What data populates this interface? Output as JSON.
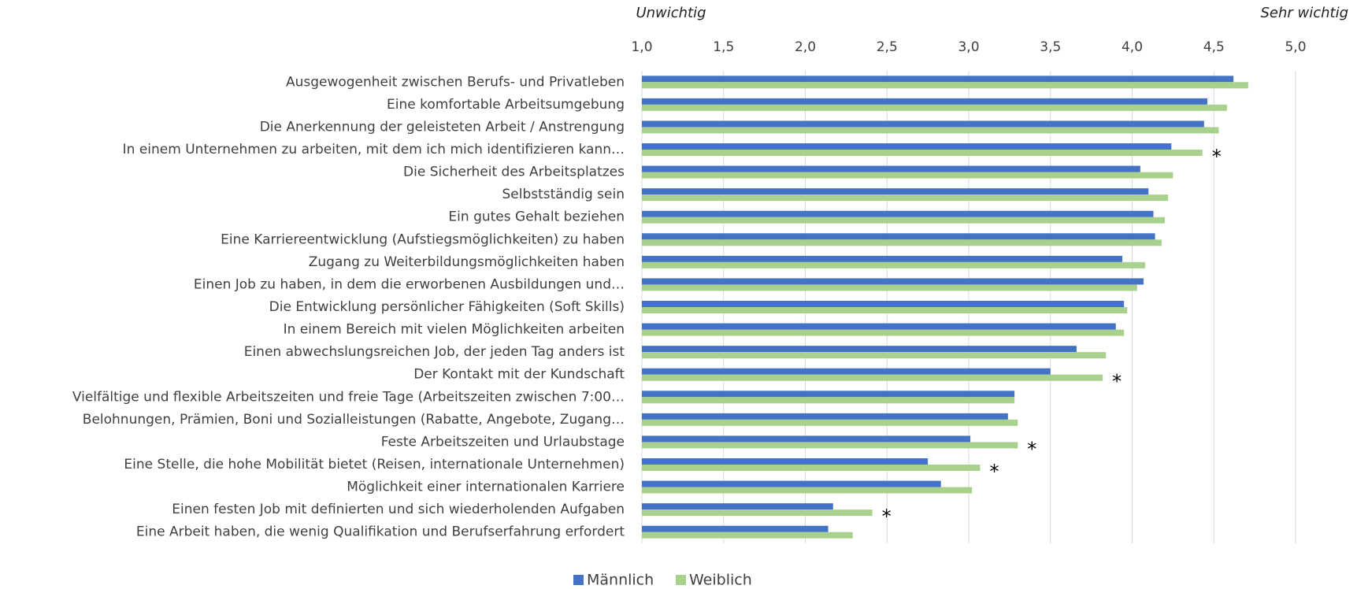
{
  "chart_data": {
    "type": "bar",
    "orientation": "horizontal",
    "xlabel_left": "Unwichtig",
    "xlabel_right": "Sehr wichtig",
    "categories": [
      "Ausgewogenheit zwischen Berufs- und Privatleben",
      "Eine komfortable Arbeitsumgebung",
      "Die Anerkennung der geleisteten Arbeit / Anstrengung",
      "In einem Unternehmen zu arbeiten, mit dem ich mich identifizieren kann…",
      "Die Sicherheit des Arbeitsplatzes",
      "Selbstständig sein",
      "Ein gutes Gehalt beziehen",
      "Eine Karriereentwicklung (Aufstiegsmöglichkeiten) zu haben",
      "Zugang zu Weiterbildungsmöglichkeiten haben",
      "Einen Job zu haben, in dem die erworbenen Ausbildungen und…",
      "Die Entwicklung persönlicher Fähigkeiten (Soft Skills)",
      "In einem Bereich mit vielen Möglichkeiten arbeiten",
      "Einen abwechslungsreichen Job, der jeden Tag anders ist",
      "Der Kontakt mit der Kundschaft",
      "Vielfältige und flexible Arbeitszeiten und freie Tage (Arbeitszeiten zwischen 7:00…",
      "Belohnungen, Prämien, Boni und Sozialleistungen (Rabatte, Angebote, Zugang…",
      "Feste Arbeitszeiten und Urlaubstage",
      "Eine Stelle, die hohe Mobilität bietet (Reisen, internationale Unternehmen)",
      "Möglichkeit einer internationalen Karriere",
      "Einen festen Job mit definierten und sich wiederholenden Aufgaben",
      "Eine Arbeit haben, die wenig Qualifikation und Berufserfahrung erfordert"
    ],
    "series": [
      {
        "name": "Männlich",
        "color": "#4472c4",
        "values": [
          4.62,
          4.46,
          4.44,
          4.24,
          4.05,
          4.1,
          4.13,
          4.14,
          3.94,
          4.07,
          3.95,
          3.9,
          3.66,
          3.5,
          3.28,
          3.24,
          3.01,
          2.75,
          2.83,
          2.17,
          2.14
        ]
      },
      {
        "name": "Weiblich",
        "color": "#a9d18e",
        "values": [
          4.71,
          4.58,
          4.53,
          4.43,
          4.25,
          4.22,
          4.2,
          4.18,
          4.08,
          4.03,
          3.97,
          3.95,
          3.84,
          3.82,
          3.28,
          3.3,
          3.3,
          3.07,
          3.02,
          2.41,
          2.29
        ]
      }
    ],
    "annotations": [
      null,
      null,
      null,
      "*",
      null,
      null,
      null,
      null,
      null,
      null,
      null,
      null,
      null,
      "*",
      null,
      null,
      "*",
      "*",
      null,
      "*",
      null
    ],
    "xlim": [
      1.0,
      5.0
    ],
    "xticks": [
      {
        "value": 1.0,
        "label": "1,0"
      },
      {
        "value": 1.5,
        "label": "1,5"
      },
      {
        "value": 2.0,
        "label": "2,0"
      },
      {
        "value": 2.5,
        "label": "2,5"
      },
      {
        "value": 3.0,
        "label": "3,0"
      },
      {
        "value": 3.5,
        "label": "3,5"
      },
      {
        "value": 4.0,
        "label": "4,0"
      },
      {
        "value": 4.5,
        "label": "4,5"
      },
      {
        "value": 5.0,
        "label": "5,0"
      }
    ],
    "grid": true,
    "legend": "bottom"
  }
}
